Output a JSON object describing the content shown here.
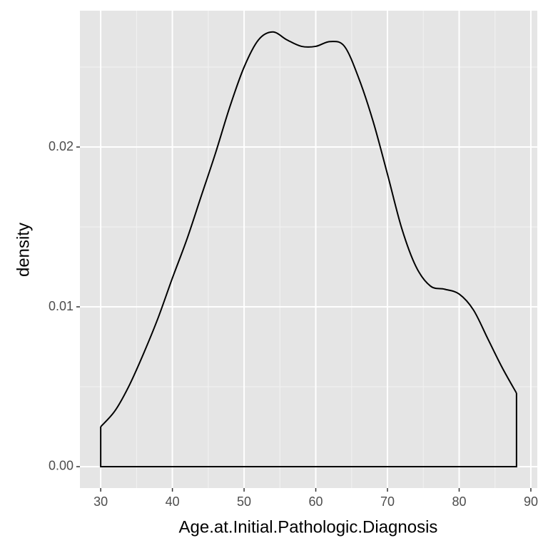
{
  "chart_data": {
    "type": "density",
    "x_label": "Age.at.Initial.Pathologic.Diagnosis",
    "y_label": "density",
    "x": [
      30,
      32,
      34,
      36,
      38,
      40,
      42,
      44,
      46,
      48,
      50,
      52,
      54,
      56,
      58,
      60,
      62,
      64,
      66,
      68,
      70,
      72,
      74,
      76,
      78,
      80,
      82,
      84,
      86,
      88
    ],
    "values": [
      0.0025,
      0.0035,
      0.0051,
      0.0071,
      0.0093,
      0.0118,
      0.0142,
      0.0169,
      0.0196,
      0.0225,
      0.025,
      0.0267,
      0.0272,
      0.0267,
      0.0263,
      0.0263,
      0.0266,
      0.0263,
      0.0243,
      0.0216,
      0.0183,
      0.0149,
      0.0125,
      0.0113,
      0.0111,
      0.0108,
      0.0098,
      0.008,
      0.0062,
      0.0046
    ],
    "color": "#000000",
    "xlim": [
      27.1,
      90.9
    ],
    "ylim": [
      -0.00134,
      0.02853
    ],
    "xticks": [
      30,
      40,
      50,
      60,
      70,
      80,
      90
    ],
    "yticks": [
      {
        "value": 0,
        "label": "0.00"
      },
      {
        "value": 0.01,
        "label": "0.01"
      },
      {
        "value": 0.02,
        "label": "0.02"
      }
    ],
    "grid": true
  }
}
